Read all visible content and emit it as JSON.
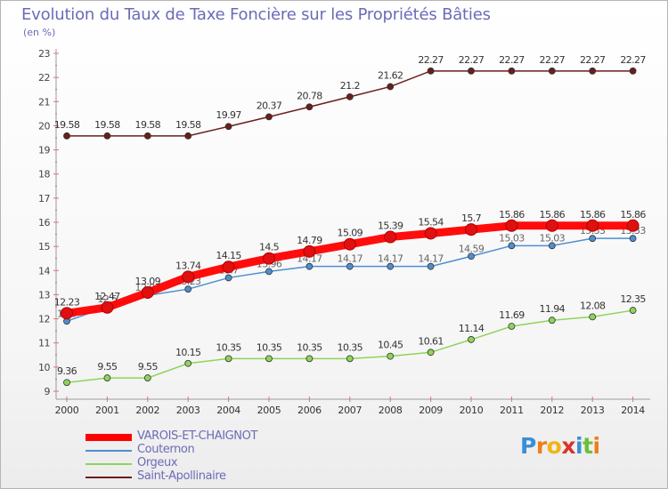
{
  "title": "Evolution du Taux de Taxe Foncière sur les Propriétés Bâties",
  "subtitle": "(en %)",
  "logo": {
    "letters": [
      "P",
      "r",
      "o",
      "x",
      "i",
      "t",
      "i"
    ],
    "colors": [
      "#3a8ed8",
      "#f07d18",
      "#f0b418",
      "#d8342a",
      "#3a8ed8",
      "#6cc038",
      "#f07d18"
    ]
  },
  "chart_data": {
    "type": "line",
    "title": "Evolution du Taux de Taxe Foncière sur les Propriétés Bâties",
    "ylabel": "(en %)",
    "xlabel": "",
    "x": [
      "2000",
      "2001",
      "2002",
      "2003",
      "2004",
      "2005",
      "2006",
      "2007",
      "2008",
      "2009",
      "2010",
      "2011",
      "2012",
      "2013",
      "2014"
    ],
    "ylim": [
      9,
      23
    ],
    "yticks": [
      "9",
      "10",
      "11",
      "12",
      "13",
      "14",
      "15",
      "16",
      "17",
      "18",
      "19",
      "20",
      "21",
      "22",
      "23"
    ],
    "grid": false,
    "legend": "bottom-left",
    "series": [
      {
        "name": "VAROIS-ET-CHAIGNOT",
        "color": "#ff0000",
        "values": [
          12.23,
          12.47,
          13.09,
          13.74,
          14.15,
          14.5,
          14.79,
          15.09,
          15.39,
          15.54,
          15.7,
          15.86,
          15.86,
          15.86,
          15.86
        ],
        "labels": [
          "12.23",
          "12.47",
          "13.09",
          "13.74",
          "14.15",
          "14.5",
          "14.79",
          "15.09",
          "15.39",
          "15.54",
          "15.7",
          "15.86",
          "15.86",
          "15.86",
          "15.86"
        ]
      },
      {
        "name": "Couternon",
        "color": "#4d8fd1",
        "values": [
          11.9,
          12.5,
          12.97,
          13.23,
          13.7,
          13.96,
          14.17,
          14.17,
          14.17,
          14.17,
          14.59,
          15.03,
          15.03,
          15.33,
          15.33
        ],
        "labels": [
          "11.9",
          "12.5",
          "12.97",
          "13.23",
          "13.7",
          "13.96",
          "14.17",
          "14.17",
          "14.17",
          "14.17",
          "14.59",
          "15.03",
          "15.03",
          "15.33",
          "15.33"
        ]
      },
      {
        "name": "Orgeux",
        "color": "#8fd45a",
        "values": [
          9.36,
          9.55,
          9.55,
          10.15,
          10.35,
          10.35,
          10.35,
          10.35,
          10.45,
          10.61,
          11.14,
          11.69,
          11.94,
          12.08,
          12.35
        ],
        "labels": [
          "9.36",
          "9.55",
          "9.55",
          "10.15",
          "10.35",
          "10.35",
          "10.35",
          "10.35",
          "10.45",
          "10.61",
          "11.14",
          "11.69",
          "11.94",
          "12.08",
          "12.35"
        ]
      },
      {
        "name": "Saint-Apollinaire",
        "color": "#6b1d1d",
        "values": [
          19.58,
          19.58,
          19.58,
          19.58,
          19.97,
          20.37,
          20.78,
          21.2,
          21.62,
          22.27,
          22.27,
          22.27,
          22.27,
          22.27,
          22.27
        ],
        "labels": [
          "19.58",
          "19.58",
          "19.58",
          "19.58",
          "19.97",
          "20.37",
          "20.78",
          "21.2",
          "21.62",
          "22.27",
          "22.27",
          "22.27",
          "22.27",
          "22.27",
          "22.27"
        ]
      }
    ]
  }
}
